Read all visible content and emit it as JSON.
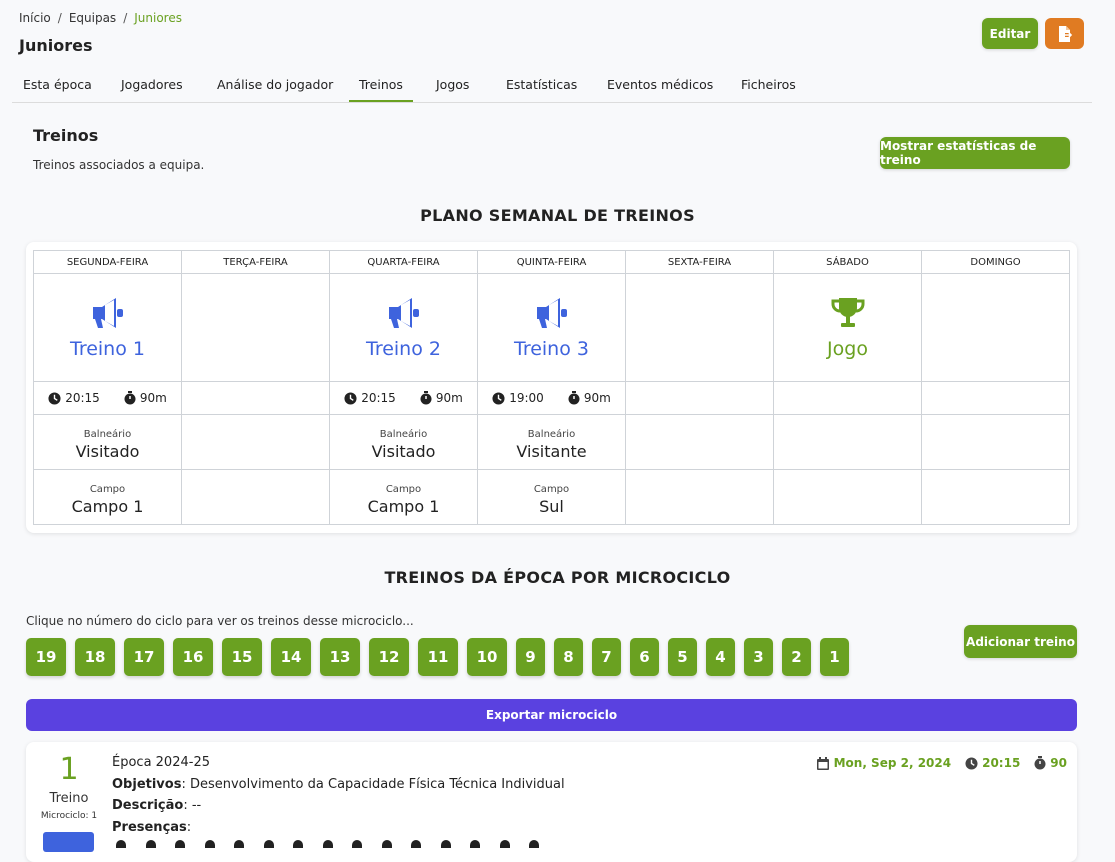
{
  "breadcrumb": {
    "items": [
      "Início",
      "Equipas",
      "Juniores"
    ]
  },
  "page_title": "Juniores",
  "header_buttons": {
    "edit_label": "Editar"
  },
  "tabs": [
    "Esta época",
    "Jogadores",
    "Análise do jogador",
    "Treinos",
    "Jogos",
    "Estatísticas",
    "Eventos médicos",
    "Ficheiros"
  ],
  "active_tab": "Treinos",
  "section": {
    "title": "Treinos",
    "description": "Treinos associados a equipa.",
    "stats_button": "Mostrar estatísticas de treino"
  },
  "weekly_plan": {
    "title": "PLANO SEMANAL DE TREINOS",
    "days": [
      "SEGUNDA-FEIRA",
      "TERÇA-FEIRA",
      "QUARTA-FEIRA",
      "QUINTA-FEIRA",
      "SEXTA-FEIRA",
      "SÁBADO",
      "DOMINGO"
    ],
    "sessions": [
      {
        "name": "Treino 1",
        "icon": "megaphone-icon",
        "time": "20:15",
        "duration": "90m",
        "balneario_label": "Balneário",
        "balneario": "Visitado",
        "campo_label": "Campo",
        "campo": "Campo 1"
      },
      null,
      {
        "name": "Treino 2",
        "icon": "megaphone-icon",
        "time": "20:15",
        "duration": "90m",
        "balneario_label": "Balneário",
        "balneario": "Visitado",
        "campo_label": "Campo",
        "campo": "Campo 1"
      },
      {
        "name": "Treino 3",
        "icon": "megaphone-icon",
        "time": "19:00",
        "duration": "90m",
        "balneario_label": "Balneário",
        "balneario": "Visitante",
        "campo_label": "Campo",
        "campo": "Sul"
      },
      null,
      {
        "name": "Jogo",
        "icon": "trophy-icon"
      },
      null
    ]
  },
  "microcycles": {
    "title": "TREINOS DA ÉPOCA POR MICROCICLO",
    "hint": "Clique no número do ciclo para ver os treinos desse microciclo...",
    "numbers": [
      "19",
      "18",
      "17",
      "16",
      "15",
      "14",
      "13",
      "12",
      "11",
      "10",
      "9",
      "8",
      "7",
      "6",
      "5",
      "4",
      "3",
      "2",
      "1"
    ],
    "add_button": "Adicionar treino",
    "export_button": "Exportar microciclo"
  },
  "training_card": {
    "number": "1",
    "label": "Treino",
    "microcycle_label": "Microciclo: 1",
    "season": "Época 2024-25",
    "objectives_label": "Objetivos",
    "objectives": "Desenvolvimento da Capacidade Física Técnica Individual",
    "description_label": "Descrição",
    "description": "--",
    "attendance_label": "Presenças",
    "date": "Mon, Sep 2, 2024",
    "time": "20:15",
    "duration": "90"
  },
  "colors": {
    "green": "#6aa121",
    "blue": "#3e63dd",
    "purple": "#5a41e0",
    "orange": "#e07b22"
  }
}
